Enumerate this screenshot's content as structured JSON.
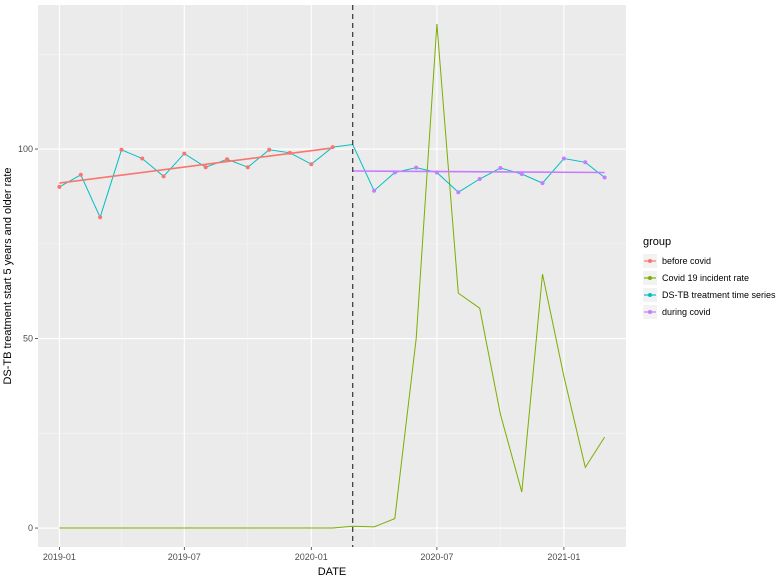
{
  "chart_data": {
    "type": "line",
    "xlabel": "DATE",
    "ylabel": "DS-TB treatment start 5 years and older rate",
    "x_tick_labels": [
      "2019-01",
      "2019-07",
      "2020-01",
      "2020-07",
      "2021-01"
    ],
    "x_tick_dates": [
      "2019-01-01",
      "2019-07-01",
      "2020-01-01",
      "2020-07-01",
      "2021-01-01"
    ],
    "y_ticks": [
      0,
      50,
      100
    ],
    "xlim": [
      "2018-12-01",
      "2021-04-01"
    ],
    "ylim": [
      -5,
      138
    ],
    "grid": true,
    "legend_title": "group",
    "legend_position": "right",
    "vline": {
      "x": "2020-03-01",
      "style": "dashed",
      "color": "#333333"
    },
    "series": [
      {
        "name": "before covid",
        "color": "#F8766D",
        "kind": "fitted",
        "x": [
          "2019-01-01",
          "2020-02-01"
        ],
        "y": [
          91,
          100.3
        ]
      },
      {
        "name": "Covid 19 incident rate",
        "color": "#7CAE00",
        "kind": "line",
        "x": [
          "2019-01-01",
          "2019-02-01",
          "2019-03-01",
          "2019-04-01",
          "2019-05-01",
          "2019-06-01",
          "2019-07-01",
          "2019-08-01",
          "2019-09-01",
          "2019-10-01",
          "2019-11-01",
          "2019-12-01",
          "2020-01-01",
          "2020-02-01",
          "2020-03-01",
          "2020-04-01",
          "2020-05-01",
          "2020-06-01",
          "2020-07-01",
          "2020-08-01",
          "2020-09-01",
          "2020-10-01",
          "2020-11-01",
          "2020-12-01",
          "2021-01-01",
          "2021-02-01",
          "2021-03-01"
        ],
        "y": [
          0,
          0,
          0,
          0,
          0,
          0,
          0,
          0,
          0,
          0,
          0,
          0,
          0,
          0,
          0.5,
          0.3,
          2.5,
          50,
          133,
          62,
          58,
          30,
          9.5,
          67,
          40,
          16,
          24
        ]
      },
      {
        "name": "DS-TB treatment time series",
        "color": "#00BFC4",
        "kind": "line",
        "x": [
          "2019-01-01",
          "2019-02-01",
          "2019-03-01",
          "2019-04-01",
          "2019-05-01",
          "2019-06-01",
          "2019-07-01",
          "2019-08-01",
          "2019-09-01",
          "2019-10-01",
          "2019-11-01",
          "2019-12-01",
          "2020-01-01",
          "2020-02-01",
          "2020-03-01",
          "2020-04-01",
          "2020-05-01",
          "2020-06-01",
          "2020-07-01",
          "2020-08-01",
          "2020-09-01",
          "2020-10-01",
          "2020-11-01",
          "2020-12-01",
          "2021-01-01",
          "2021-02-01",
          "2021-03-01"
        ],
        "y": [
          90,
          93.2,
          82,
          99.8,
          97.5,
          92.8,
          98.8,
          95.2,
          97.3,
          95.2,
          99.8,
          99,
          96,
          100.5,
          101.2,
          89,
          93.8,
          95.1,
          93.8,
          88.6,
          92.1,
          95,
          93.4,
          91,
          97.5,
          96.5,
          92.5
        ]
      },
      {
        "name": "during covid",
        "color": "#C77CFF",
        "kind": "fitted",
        "x": [
          "2020-03-01",
          "2021-03-01"
        ],
        "y": [
          94.2,
          93.8
        ]
      }
    ],
    "points": [
      {
        "color": "#F8766D",
        "x": [
          "2019-01-01",
          "2019-02-01",
          "2019-03-01",
          "2019-04-01",
          "2019-05-01",
          "2019-06-01",
          "2019-07-01",
          "2019-08-01",
          "2019-09-01",
          "2019-10-01",
          "2019-11-01",
          "2019-12-01",
          "2020-01-01",
          "2020-02-01"
        ],
        "y": [
          90,
          93.2,
          82,
          99.8,
          97.5,
          92.8,
          98.8,
          95.2,
          97.3,
          95.2,
          99.8,
          99,
          96,
          100.5
        ]
      },
      {
        "color": "#C77CFF",
        "x": [
          "2020-04-01",
          "2020-05-01",
          "2020-06-01",
          "2020-07-01",
          "2020-08-01",
          "2020-09-01",
          "2020-10-01",
          "2020-11-01",
          "2020-12-01",
          "2021-01-01",
          "2021-02-01",
          "2021-03-01"
        ],
        "y": [
          89,
          93.8,
          95.1,
          93.8,
          88.6,
          92.1,
          95,
          93.4,
          91,
          97.5,
          96.5,
          92.5
        ]
      }
    ]
  }
}
